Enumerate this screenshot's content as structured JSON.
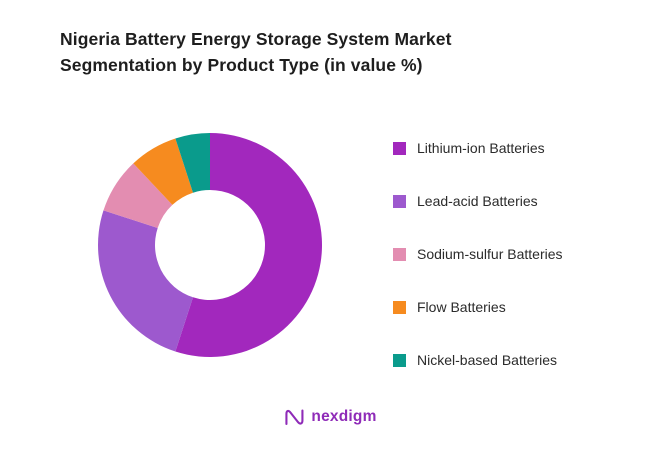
{
  "title": {
    "line1": "Nigeria Battery Energy Storage System Market",
    "line2": "Segmentation by Product Type (in value %)"
  },
  "brand": {
    "name": "nexdigm",
    "color": "#8F2BB8"
  },
  "chart_data": {
    "type": "pie",
    "subtype": "donut",
    "title": "Nigeria Battery Energy Storage System Market Segmentation by Product Type (in value %)",
    "legend_position": "right",
    "start_angle_deg": 0,
    "direction": "clockwise",
    "series": [
      {
        "name": "Lithium-ion Batteries",
        "value": 55,
        "color": "#A228BD"
      },
      {
        "name": "Lead-acid Batteries",
        "value": 25,
        "color": "#9D59CE"
      },
      {
        "name": "Sodium-sulfur Batteries",
        "value": 8,
        "color": "#E38DB1"
      },
      {
        "name": "Flow Batteries",
        "value": 7,
        "color": "#F68B1F"
      },
      {
        "name": "Nickel-based Batteries",
        "value": 5,
        "color": "#0A9B8C"
      }
    ]
  }
}
